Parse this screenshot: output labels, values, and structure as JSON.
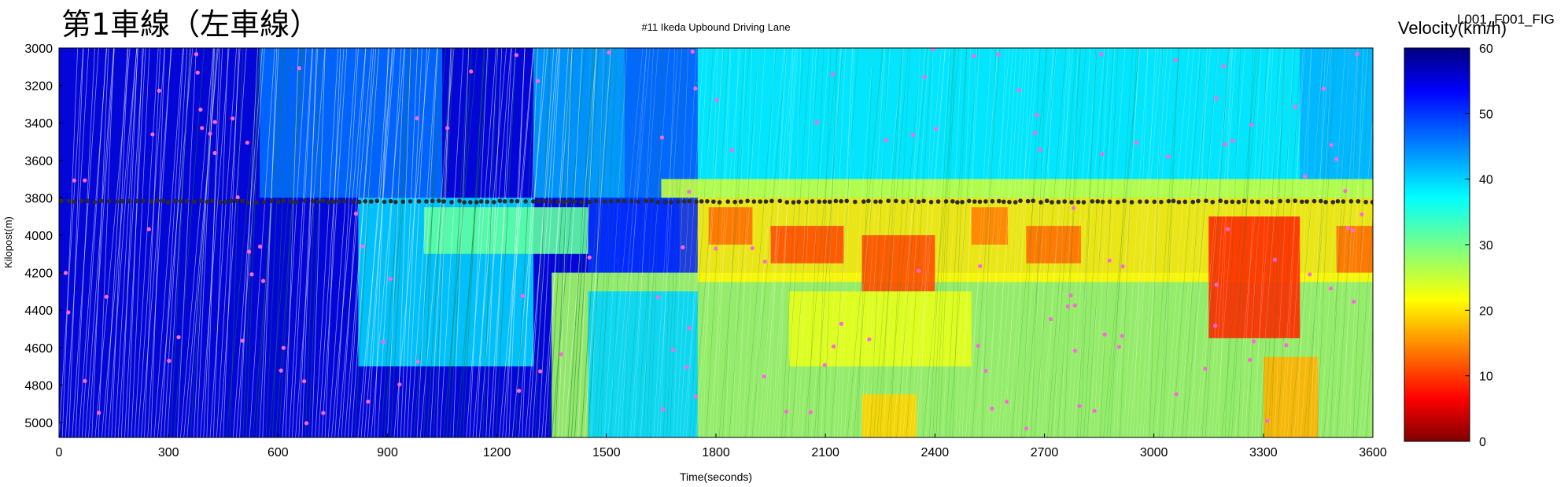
{
  "header": {
    "japanese_title": "第1車線（左車線）",
    "plot_title": "#11 Ikeda Upbound Driving Lane",
    "colorbar_title": "Velocity(km/h)",
    "figure_id": "L001_F001_FIG"
  },
  "chart_data": {
    "type": "heatmap",
    "title": "#11 Ikeda Upbound Driving Lane",
    "xlabel": "Time(seconds)",
    "ylabel": "Kilopost(m)",
    "xlim": [
      0,
      3600
    ],
    "ylim": [
      3000,
      5080
    ],
    "y_inverted": true,
    "x_ticks": [
      0,
      300,
      600,
      900,
      1200,
      1500,
      1800,
      2100,
      2400,
      2700,
      3000,
      3300,
      3600
    ],
    "y_ticks": [
      3000,
      3200,
      3400,
      3600,
      3800,
      4000,
      4200,
      4400,
      4600,
      4800,
      5000
    ],
    "colorbar": {
      "label": "Velocity(km/h)",
      "range": [
        0,
        60
      ],
      "ticks": [
        0,
        10,
        20,
        30,
        40,
        50,
        60
      ],
      "colormap": "jet"
    },
    "detector_kilopost": 3820,
    "regions": [
      {
        "t0": 0,
        "t1": 1450,
        "k0": 3000,
        "k1": 5080,
        "v": 55
      },
      {
        "t0": 550,
        "t1": 1050,
        "k0": 3000,
        "k1": 3800,
        "v": 46
      },
      {
        "t0": 820,
        "t1": 1300,
        "k0": 3800,
        "k1": 4700,
        "v": 40
      },
      {
        "t0": 1000,
        "t1": 1450,
        "k0": 3850,
        "k1": 4100,
        "v": 32
      },
      {
        "t0": 1300,
        "t1": 1550,
        "k0": 3000,
        "k1": 3800,
        "v": 43
      },
      {
        "t0": 1550,
        "t1": 1750,
        "k0": 3000,
        "k1": 3800,
        "v": 46
      },
      {
        "t0": 1450,
        "t1": 1700,
        "k0": 3800,
        "k1": 4300,
        "v": 50
      },
      {
        "t0": 1350,
        "t1": 3600,
        "k0": 4200,
        "k1": 5080,
        "v": 28
      },
      {
        "t0": 1450,
        "t1": 1750,
        "k0": 4300,
        "k1": 5080,
        "v": 40
      },
      {
        "t0": 1750,
        "t1": 3600,
        "k0": 3000,
        "k1": 3800,
        "v": 38
      },
      {
        "t0": 1650,
        "t1": 3600,
        "k0": 3700,
        "k1": 3800,
        "v": 26
      },
      {
        "t0": 1750,
        "t1": 3600,
        "k0": 3800,
        "k1": 4250,
        "v": 22
      },
      {
        "t0": 1780,
        "t1": 1900,
        "k0": 3850,
        "k1": 4050,
        "v": 14
      },
      {
        "t0": 1950,
        "t1": 2150,
        "k0": 3950,
        "k1": 4150,
        "v": 12
      },
      {
        "t0": 2200,
        "t1": 2400,
        "k0": 4000,
        "k1": 4300,
        "v": 12
      },
      {
        "t0": 2500,
        "t1": 2600,
        "k0": 3850,
        "k1": 4050,
        "v": 15
      },
      {
        "t0": 2650,
        "t1": 2800,
        "k0": 3950,
        "k1": 4150,
        "v": 14
      },
      {
        "t0": 3150,
        "t1": 3400,
        "k0": 3900,
        "k1": 4550,
        "v": 10
      },
      {
        "t0": 3500,
        "t1": 3600,
        "k0": 3950,
        "k1": 4200,
        "v": 14
      },
      {
        "t0": 2000,
        "t1": 2500,
        "k0": 4300,
        "k1": 4700,
        "v": 24
      },
      {
        "t0": 2200,
        "t1": 2350,
        "k0": 4850,
        "k1": 5080,
        "v": 20
      },
      {
        "t0": 3300,
        "t1": 3450,
        "k0": 4650,
        "k1": 5080,
        "v": 18
      },
      {
        "t0": 3400,
        "t1": 3600,
        "k0": 3000,
        "k1": 3700,
        "v": 42
      }
    ]
  }
}
